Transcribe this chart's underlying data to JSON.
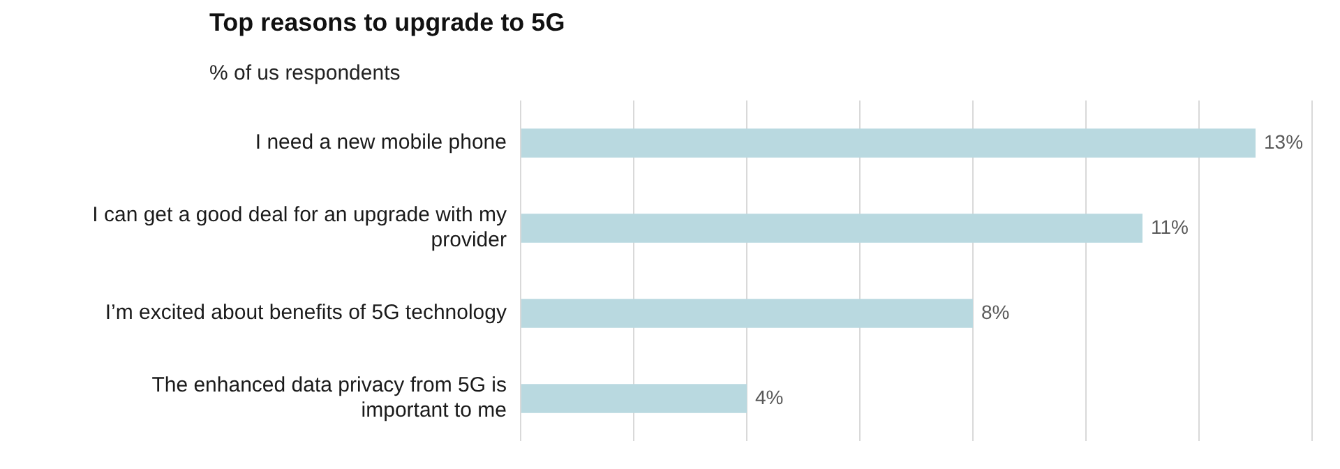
{
  "chart_data": {
    "type": "bar",
    "orientation": "horizontal",
    "title": "Top reasons to upgrade to 5G",
    "subtitle": "% of us respondents",
    "categories": [
      "I need a new mobile phone",
      "I can get a good deal for an upgrade with my provider",
      "I’m excited about benefits of 5G technology",
      "The enhanced data privacy from 5G is important to me"
    ],
    "values": [
      13,
      11,
      8,
      4
    ],
    "value_labels": [
      "13%",
      "11%",
      "8%",
      "4%"
    ],
    "color": "#b9d9e0",
    "xlim": [
      0,
      14
    ],
    "xticks": [
      {
        "value": 0,
        "label": null
      },
      {
        "value": 2,
        "label": null
      },
      {
        "value": 4,
        "label": null
      },
      {
        "value": 6,
        "label": null
      },
      {
        "value": 8,
        "label": null
      },
      {
        "value": 10,
        "label": null
      },
      {
        "value": 12,
        "label": null
      },
      {
        "value": 14,
        "label": null
      }
    ],
    "grid": "x",
    "tick_labels": "y"
  }
}
